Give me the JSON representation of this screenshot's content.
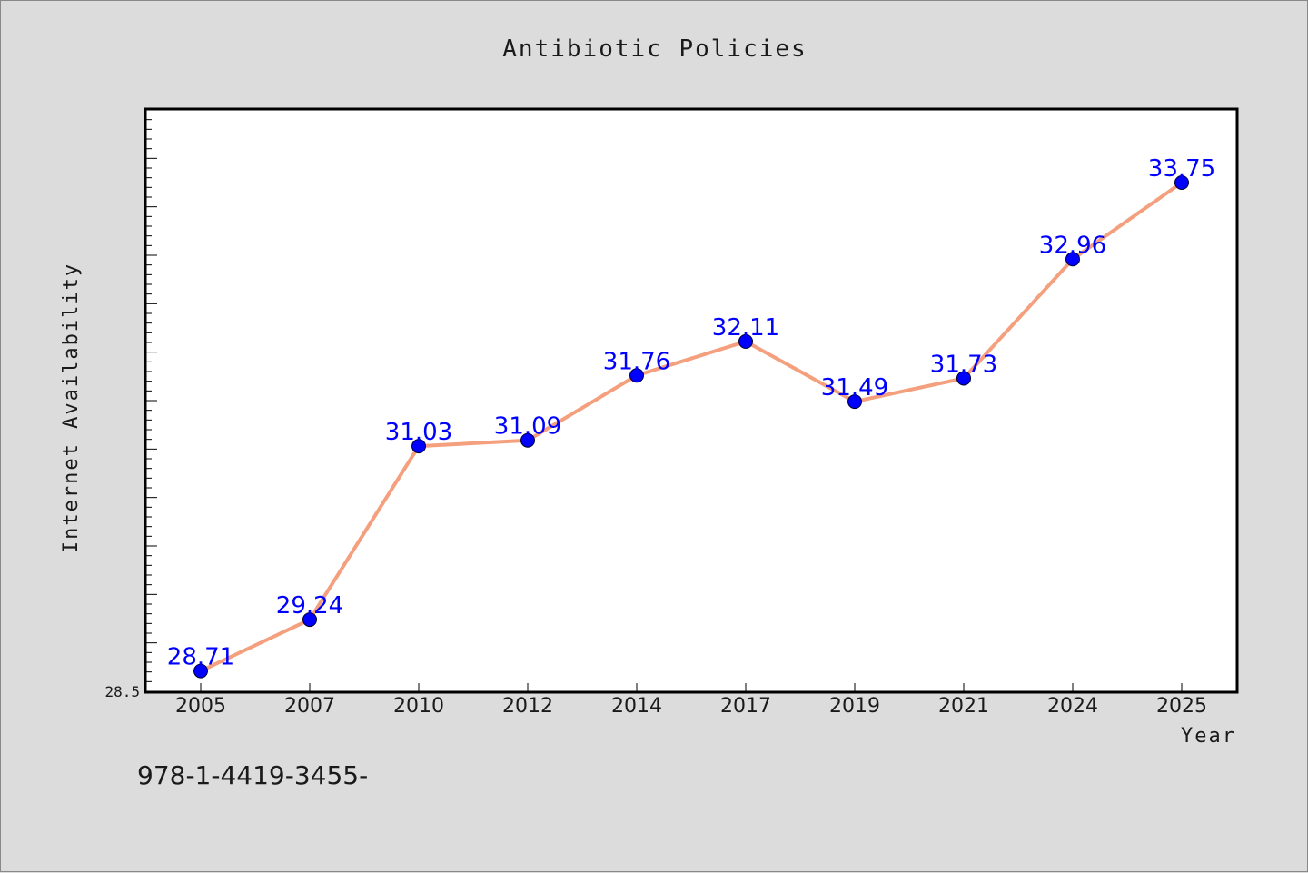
{
  "chart_data": {
    "type": "line",
    "title": "Antibiotic Policies",
    "xlabel": "Year",
    "ylabel": "Internet Availability",
    "categories": [
      "2005",
      "2007",
      "2010",
      "2012",
      "2014",
      "2017",
      "2019",
      "2021",
      "2024",
      "2025"
    ],
    "series": [
      {
        "values": [
          28.71,
          29.24,
          31.03,
          31.09,
          31.76,
          32.11,
          31.49,
          31.73,
          32.96,
          33.75
        ]
      }
    ],
    "data_labels": [
      "28.71",
      "29.24",
      "31.03",
      "31.09",
      "31.76",
      "32.11",
      "31.49",
      "31.73",
      "32.96",
      "33.75"
    ],
    "ylim": [
      28.5,
      34.5
    ],
    "yticks_labeled": [
      "28.5"
    ],
    "grid": false,
    "legend": "none",
    "colors": {
      "line": "#f4a07f",
      "marker": "#0000ff",
      "data_label": "#0000ff",
      "background": "#dcdcdc",
      "plot_background": "#ffffff"
    }
  },
  "footer": {
    "text": "978-1-4419-3455-"
  }
}
